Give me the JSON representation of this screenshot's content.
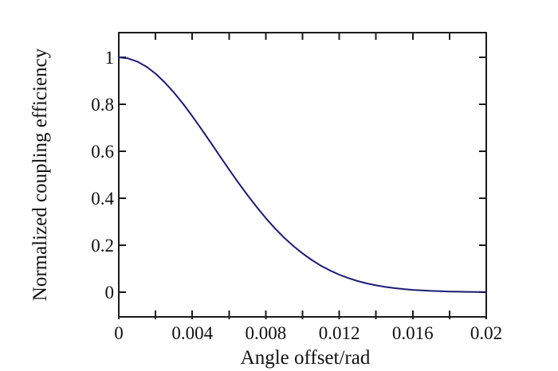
{
  "figure": {
    "background": "#ffffff",
    "title": ""
  },
  "chart_data": {
    "type": "line",
    "title": "",
    "xlabel": "Angle offset/rad",
    "ylabel": "Normalized coupling efficiency",
    "xlim": [
      0,
      0.02
    ],
    "ylim": [
      -0.105,
      1.105
    ],
    "grid": false,
    "legend": null,
    "box": true,
    "axis_color": "#1a1a1a",
    "line_color": "#1b1b78",
    "x_ticks_all": [
      0,
      0.002,
      0.004,
      0.006,
      0.008,
      0.01,
      0.012,
      0.014,
      0.016,
      0.018,
      0.02
    ],
    "x_ticks_labeled": [
      0,
      0.004,
      0.008,
      0.012,
      0.016,
      0.02
    ],
    "x_tick_labels": [
      "0",
      "0.004",
      "0.008",
      "0.012",
      "0.016",
      "0.02"
    ],
    "y_ticks": [
      0,
      0.2,
      0.4,
      0.6,
      0.8,
      1
    ],
    "y_tick_labels": [
      "0",
      "0.2",
      "0.4",
      "0.6",
      "0.8",
      "1"
    ],
    "series": [
      {
        "name": "normalized-coupling-efficiency",
        "x": [
          0,
          0.0005,
          0.001,
          0.0015,
          0.002,
          0.0025,
          0.003,
          0.0035,
          0.004,
          0.0045,
          0.005,
          0.0055,
          0.006,
          0.0065,
          0.007,
          0.0075,
          0.008,
          0.0085,
          0.009,
          0.0095,
          0.01,
          0.0105,
          0.011,
          0.0115,
          0.012,
          0.0125,
          0.013,
          0.0135,
          0.014,
          0.0145,
          0.015,
          0.0155,
          0.016,
          0.0165,
          0.017,
          0.0175,
          0.018,
          0.0185,
          0.019,
          0.0195,
          0.02
        ],
        "y": [
          1.0,
          0.9955,
          0.9821,
          0.9603,
          0.9305,
          0.8935,
          0.8503,
          0.802,
          0.7496,
          0.6943,
          0.6374,
          0.5798,
          0.5228,
          0.4671,
          0.4136,
          0.363,
          0.3157,
          0.272,
          0.2324,
          0.1967,
          0.165,
          0.1372,
          0.113,
          0.0923,
          0.0747,
          0.0599,
          0.0476,
          0.0375,
          0.0293,
          0.0226,
          0.0174,
          0.0132,
          0.0099,
          0.0074,
          0.0055,
          0.004,
          0.0029,
          0.0021,
          0.0015,
          0.0011,
          0.0007
        ]
      }
    ]
  }
}
